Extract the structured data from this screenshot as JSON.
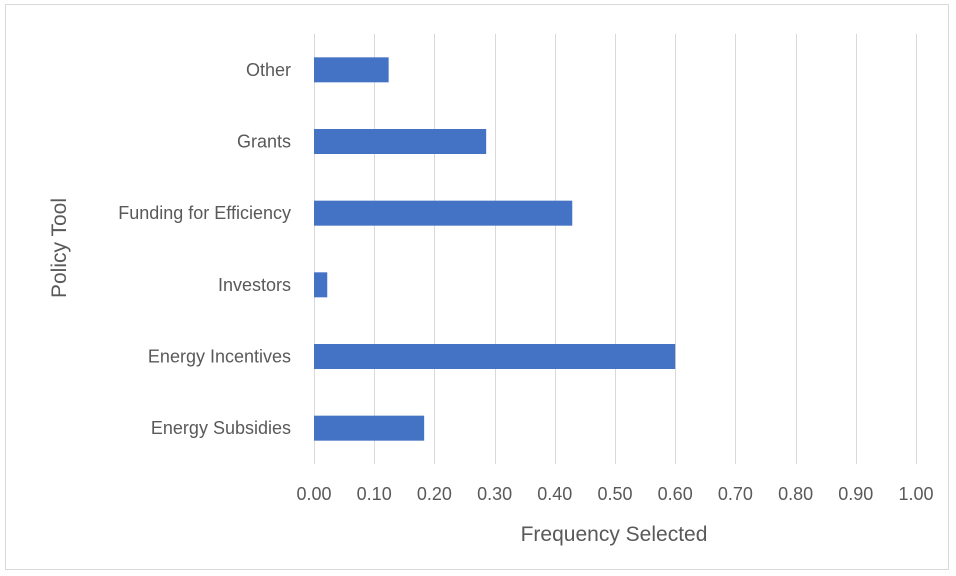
{
  "chart_data": {
    "type": "bar",
    "orientation": "horizontal",
    "title": "",
    "xlabel": "Frequency Selected",
    "ylabel": "Policy Tool",
    "categories": [
      "Energy Subsidies",
      "Energy Incentives",
      "Investors",
      "Funding for Efficiency",
      "Grants",
      "Other"
    ],
    "values": [
      0.183,
      0.6,
      0.022,
      0.429,
      0.286,
      0.124
    ],
    "xlim": [
      0,
      1.0
    ],
    "xticks": [
      "0.00",
      "0.10",
      "0.20",
      "0.30",
      "0.40",
      "0.50",
      "0.60",
      "0.70",
      "0.80",
      "0.90",
      "1.00"
    ],
    "grid": "vertical",
    "legend": "none",
    "bar_color": "#4472c4",
    "grid_color": "#d9d9d9"
  }
}
